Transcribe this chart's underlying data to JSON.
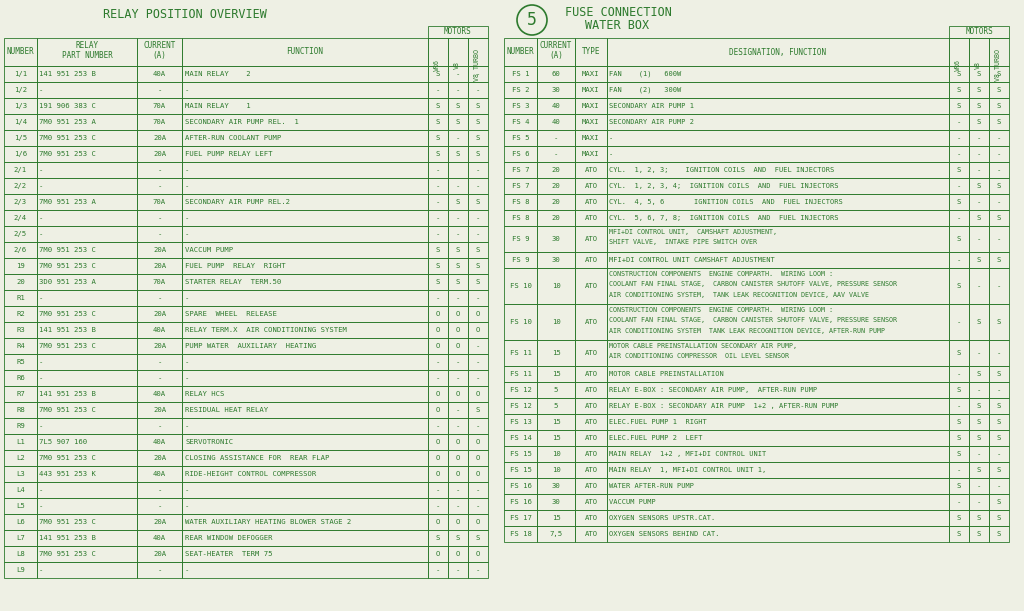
{
  "bg_color": "#eef0e4",
  "text_color": "#2d7a2d",
  "line_color": "#2d7a2d",
  "title_left": "RELAY POSITION OVERVIEW",
  "title_right_line1": "FUSE CONNECTION",
  "title_right_line2": "WATER BOX",
  "circle_num": "5",
  "left_rows": [
    [
      "1/1",
      "141 951 253 B",
      "40A",
      "MAIN RELAY    2",
      "S",
      "-",
      "-"
    ],
    [
      "1/2",
      "-",
      "-",
      "-",
      "-",
      "-",
      "-"
    ],
    [
      "1/3",
      "191 906 383 C",
      "70A",
      "MAIN RELAY    1",
      "S",
      "S",
      "S"
    ],
    [
      "1/4",
      "7M0 951 253 A",
      "70A",
      "SECONDARY AIR PUMP REL.  1",
      "S",
      "S",
      "S"
    ],
    [
      "1/5",
      "7M0 951 253 C",
      "20A",
      "AFTER-RUN COOLANT PUMP",
      "S",
      "-",
      "S"
    ],
    [
      "1/6",
      "7M0 951 253 C",
      "20A",
      "FUEL PUMP RELAY LEFT",
      "S",
      "S",
      "S"
    ],
    [
      "2/1",
      "-",
      "-",
      "-",
      "-",
      "",
      "-"
    ],
    [
      "2/2",
      "-",
      "-",
      "-",
      "-",
      "-",
      "-"
    ],
    [
      "2/3",
      "7M0 951 253 A",
      "70A",
      "SECONDARY AIR PUMP REL.2",
      "-",
      "S",
      "S"
    ],
    [
      "2/4",
      "-",
      "-",
      "-",
      "-",
      "-",
      "-"
    ],
    [
      "2/5",
      "-",
      "-",
      "-",
      "-",
      "-",
      "-"
    ],
    [
      "2/6",
      "7M0 951 253 C",
      "20A",
      "VACCUM PUMP",
      "S",
      "S",
      "S"
    ],
    [
      "19",
      "7M0 951 253 C",
      "20A",
      "FUEL PUMP  RELAY  RIGHT",
      "S",
      "S",
      "S"
    ],
    [
      "20",
      "3D0 951 253 A",
      "70A",
      "STARTER RELAY  TERM.50",
      "S",
      "S",
      "S"
    ],
    [
      "R1",
      "-",
      "-",
      "-",
      "-",
      "-",
      "-"
    ],
    [
      "R2",
      "7M0 951 253 C",
      "20A",
      "SPARE  WHEEL  RELEASE",
      "O",
      "O",
      "O"
    ],
    [
      "R3",
      "141 951 253 B",
      "40A",
      "RELAY TERM.X  AIR CONDITIONING SYSTEM",
      "O",
      "O",
      "O"
    ],
    [
      "R4",
      "7M0 951 253 C",
      "20A",
      "PUMP WATER  AUXILIARY  HEATING",
      "O",
      "O",
      "-"
    ],
    [
      "R5",
      "-",
      "-",
      "-",
      "-",
      "-",
      "-"
    ],
    [
      "R6",
      "-",
      "-",
      "-",
      "-",
      "-",
      "-"
    ],
    [
      "R7",
      "141 951 253 B",
      "40A",
      "RELAY HCS",
      "O",
      "O",
      "O"
    ],
    [
      "R8",
      "7M0 951 253 C",
      "20A",
      "RESIDUAL HEAT RELAY",
      "O",
      "-",
      "S"
    ],
    [
      "R9",
      "-",
      "-",
      "-",
      "-",
      "-",
      "-"
    ],
    [
      "L1",
      "7L5 907 160",
      "40A",
      "SERVOTRONIC",
      "O",
      "O",
      "O"
    ],
    [
      "L2",
      "7M0 951 253 C",
      "20A",
      "CLOSING ASSISTANCE FOR  REAR FLAP",
      "O",
      "O",
      "O"
    ],
    [
      "L3",
      "443 951 253 K",
      "40A",
      "RIDE-HEIGHT CONTROL COMPRESSOR",
      "O",
      "O",
      "O"
    ],
    [
      "L4",
      "-",
      "-",
      "-",
      "-",
      "-",
      "-"
    ],
    [
      "L5",
      "-",
      "-",
      "-",
      "-",
      "-",
      "-"
    ],
    [
      "L6",
      "7M0 951 253 C",
      "20A",
      "WATER AUXILIARY HEATING BLOWER STAGE 2",
      "O",
      "O",
      "O"
    ],
    [
      "L7",
      "141 951 253 B",
      "40A",
      "REAR WINDOW DEFOGGER",
      "S",
      "S",
      "S"
    ],
    [
      "L8",
      "7M0 951 253 C",
      "20A",
      "SEAT-HEATER  TERM 75",
      "O",
      "O",
      "O"
    ],
    [
      "L9",
      "-",
      "-",
      "-",
      "-",
      "-",
      "-"
    ]
  ],
  "right_rows": [
    [
      "FS 1",
      "60",
      "MAXI",
      "FAN    (1)   600W",
      "S",
      "S",
      "S",
      1
    ],
    [
      "FS 2",
      "30",
      "MAXI",
      "FAN    (2)   300W",
      "S",
      "S",
      "S",
      1
    ],
    [
      "FS 3",
      "40",
      "MAXI",
      "SECONDARY AIR PUMP 1",
      "S",
      "S",
      "S",
      1
    ],
    [
      "FS 4",
      "40",
      "MAXI",
      "SECONDARY AIR PUMP 2",
      "-",
      "S",
      "S",
      1
    ],
    [
      "FS 5",
      "-",
      "MAXI",
      "-",
      "-",
      "-",
      "-",
      1
    ],
    [
      "FS 6",
      "-",
      "MAXI",
      "-",
      "-",
      "-",
      "-",
      1
    ],
    [
      "FS 7",
      "20",
      "ATO",
      "CYL.  1, 2, 3;    IGNITION COILS  AND  FUEL INJECTORS",
      "S",
      "-",
      "-",
      1
    ],
    [
      "FS 7",
      "20",
      "ATO",
      "CYL.  1, 2, 3, 4;  IGNITION COILS  AND  FUEL INJECTORS",
      "-",
      "S",
      "S",
      1
    ],
    [
      "FS 8",
      "20",
      "ATO",
      "CYL.  4, 5, 6       IGNITION COILS  AND  FUEL INJECTORS",
      "S",
      "-",
      "-",
      1
    ],
    [
      "FS 8",
      "20",
      "ATO",
      "CYL.  5, 6, 7, 8;  IGNITION COILS  AND  FUEL INJECTORS",
      "-",
      "S",
      "S",
      1
    ],
    [
      "FS 9",
      "30",
      "ATO",
      "MFI+DI CONTROL UNIT,  CAMSHAFT ADJUSTMENT,\nSHIFT VALVE,  INTAKE PIPE SWITCH OVER",
      "S",
      "-",
      "-",
      2
    ],
    [
      "FS 9",
      "30",
      "ATO",
      "MFI+DI CONTROL UNIT CAMSHAFT ADJUSTMENT",
      "-",
      "S",
      "S",
      1
    ],
    [
      "FS 10",
      "10",
      "ATO",
      "CONSTRUCTION COMPONENTS  ENGINE COMPARTH.  WIRING LOOM :\nCOOLANT FAN FINAL STAGE,  CARBON CANISTER SHUTOFF VALVE, PRESSURE SENSOR\nAIR CONDITIONING SYSTEM,  TANK LEAK RECOGNITION DEVICE, AAV VALVE",
      "S",
      "-",
      "-",
      3
    ],
    [
      "FS 10",
      "10",
      "ATO",
      "CONSTRUCTION COMPONENTS  ENGINE COMPARTH.  WIRING LOOM :\nCOOLANT FAN FINAL STAGE,  CARBON CANISTER SHUTOFF VALVE, PRESSURE SENSOR\nAIR CONDITIONING SYSTEM  TANK LEAK RECOGNITION DEVICE, AFTER-RUN PUMP",
      "-",
      "S",
      "S",
      3
    ],
    [
      "FS 11",
      "15",
      "ATO",
      "MOTOR CABLE PREINSTALLATION SECONDARY AIR PUMP,\nAIR CONDITIONING COMPRESSOR  OIL LEVEL SENSOR",
      "S",
      "-",
      "-",
      2
    ],
    [
      "FS 11",
      "15",
      "ATO",
      "MOTOR CABLE PREINSTALLATION",
      "-",
      "S",
      "S",
      1
    ],
    [
      "FS 12",
      "5",
      "ATO",
      "RELAY E-BOX : SECONDARY AIR PUMP,  AFTER-RUN PUMP",
      "S",
      "-",
      "-",
      1
    ],
    [
      "FS 12",
      "5",
      "ATO",
      "RELAY E-BOX : SECONDARY AIR PUMP  1+2 , AFTER-RUN PUMP",
      "-",
      "S",
      "S",
      1
    ],
    [
      "FS 13",
      "15",
      "ATO",
      "ELEC.FUEL PUMP 1  RIGHT",
      "S",
      "S",
      "S",
      1
    ],
    [
      "FS 14",
      "15",
      "ATO",
      "ELEC.FUEL PUMP 2  LEFT",
      "S",
      "S",
      "S",
      1
    ],
    [
      "FS 15",
      "10",
      "ATO",
      "MAIN RELAY  1+2 , MFI+DI CONTROL UNIT",
      "S",
      "-",
      "-",
      1
    ],
    [
      "FS 15",
      "10",
      "ATO",
      "MAIN RELAY  1, MFI+DI CONTROL UNIT 1,",
      "-",
      "S",
      "S",
      1
    ],
    [
      "FS 16",
      "30",
      "ATO",
      "WATER AFTER-RUN PUMP",
      "S",
      "-",
      "-",
      1
    ],
    [
      "FS 16",
      "30",
      "ATO",
      "VACCUM PUMP",
      "-",
      "-",
      "S",
      1
    ],
    [
      "FS 17",
      "15",
      "ATO",
      "OXYGEN SENSORS UPSTR.CAT.",
      "S",
      "S",
      "S",
      1
    ],
    [
      "FS 18",
      "7,5",
      "ATO",
      "OXYGEN SENSORS BEHIND CAT.",
      "S",
      "S",
      "S",
      1
    ]
  ]
}
